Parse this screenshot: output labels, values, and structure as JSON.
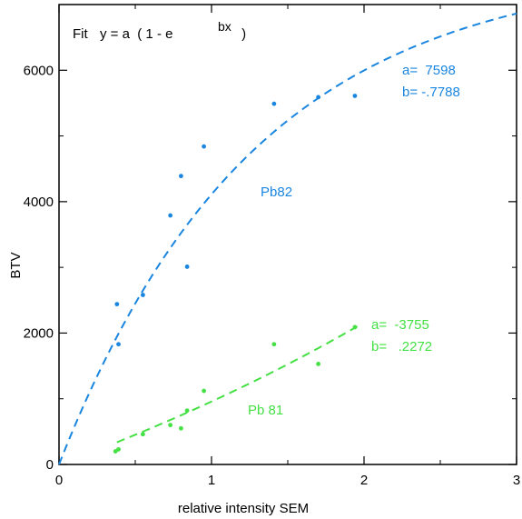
{
  "chart_data": {
    "type": "scatter",
    "title": "",
    "xlabel": "relative intensity SEM",
    "ylabel": "BTV",
    "xlim": [
      0,
      3
    ],
    "ylim": [
      0,
      7000
    ],
    "x_ticks": [
      0,
      1,
      2,
      3
    ],
    "x_tick_labels": [
      "0",
      "1",
      "2",
      "3"
    ],
    "y_ticks": [
      0,
      2000,
      4000,
      6000
    ],
    "y_tick_labels": [
      "0",
      "2000",
      "4000",
      "6000"
    ],
    "grid": false,
    "fit_label": {
      "prefix": "Fit",
      "body": "y = a  ( 1 - e",
      "exponent": "bx",
      "suffix": " )"
    },
    "series": [
      {
        "name": "Pb82",
        "color": "#1a86e0",
        "fit": {
          "a": 7598,
          "b": -0.7788
        },
        "fit_range": [
          0.0,
          3.0
        ],
        "param_a_label": "a=  7598",
        "param_b_label": "b= -.7788",
        "points": [
          {
            "x": 0.38,
            "y": 2440
          },
          {
            "x": 0.39,
            "y": 1830
          },
          {
            "x": 0.55,
            "y": 2580
          },
          {
            "x": 0.73,
            "y": 3790
          },
          {
            "x": 0.8,
            "y": 4390
          },
          {
            "x": 0.84,
            "y": 3010
          },
          {
            "x": 0.95,
            "y": 4840
          },
          {
            "x": 1.41,
            "y": 5490
          },
          {
            "x": 1.7,
            "y": 5590
          },
          {
            "x": 1.94,
            "y": 5610
          }
        ]
      },
      {
        "name": "Pb 81",
        "color": "#44e044",
        "fit": {
          "a": -3755,
          "b": 0.2272
        },
        "fit_range": [
          0.38,
          1.96
        ],
        "param_a_label": "a=  -3755",
        "param_b_label": "b=   .2272",
        "points": [
          {
            "x": 0.37,
            "y": 200
          },
          {
            "x": 0.39,
            "y": 230
          },
          {
            "x": 0.55,
            "y": 460
          },
          {
            "x": 0.73,
            "y": 600
          },
          {
            "x": 0.8,
            "y": 550
          },
          {
            "x": 0.84,
            "y": 820
          },
          {
            "x": 0.95,
            "y": 1120
          },
          {
            "x": 1.41,
            "y": 1830
          },
          {
            "x": 1.7,
            "y": 1530
          },
          {
            "x": 1.94,
            "y": 2090
          }
        ]
      }
    ]
  }
}
